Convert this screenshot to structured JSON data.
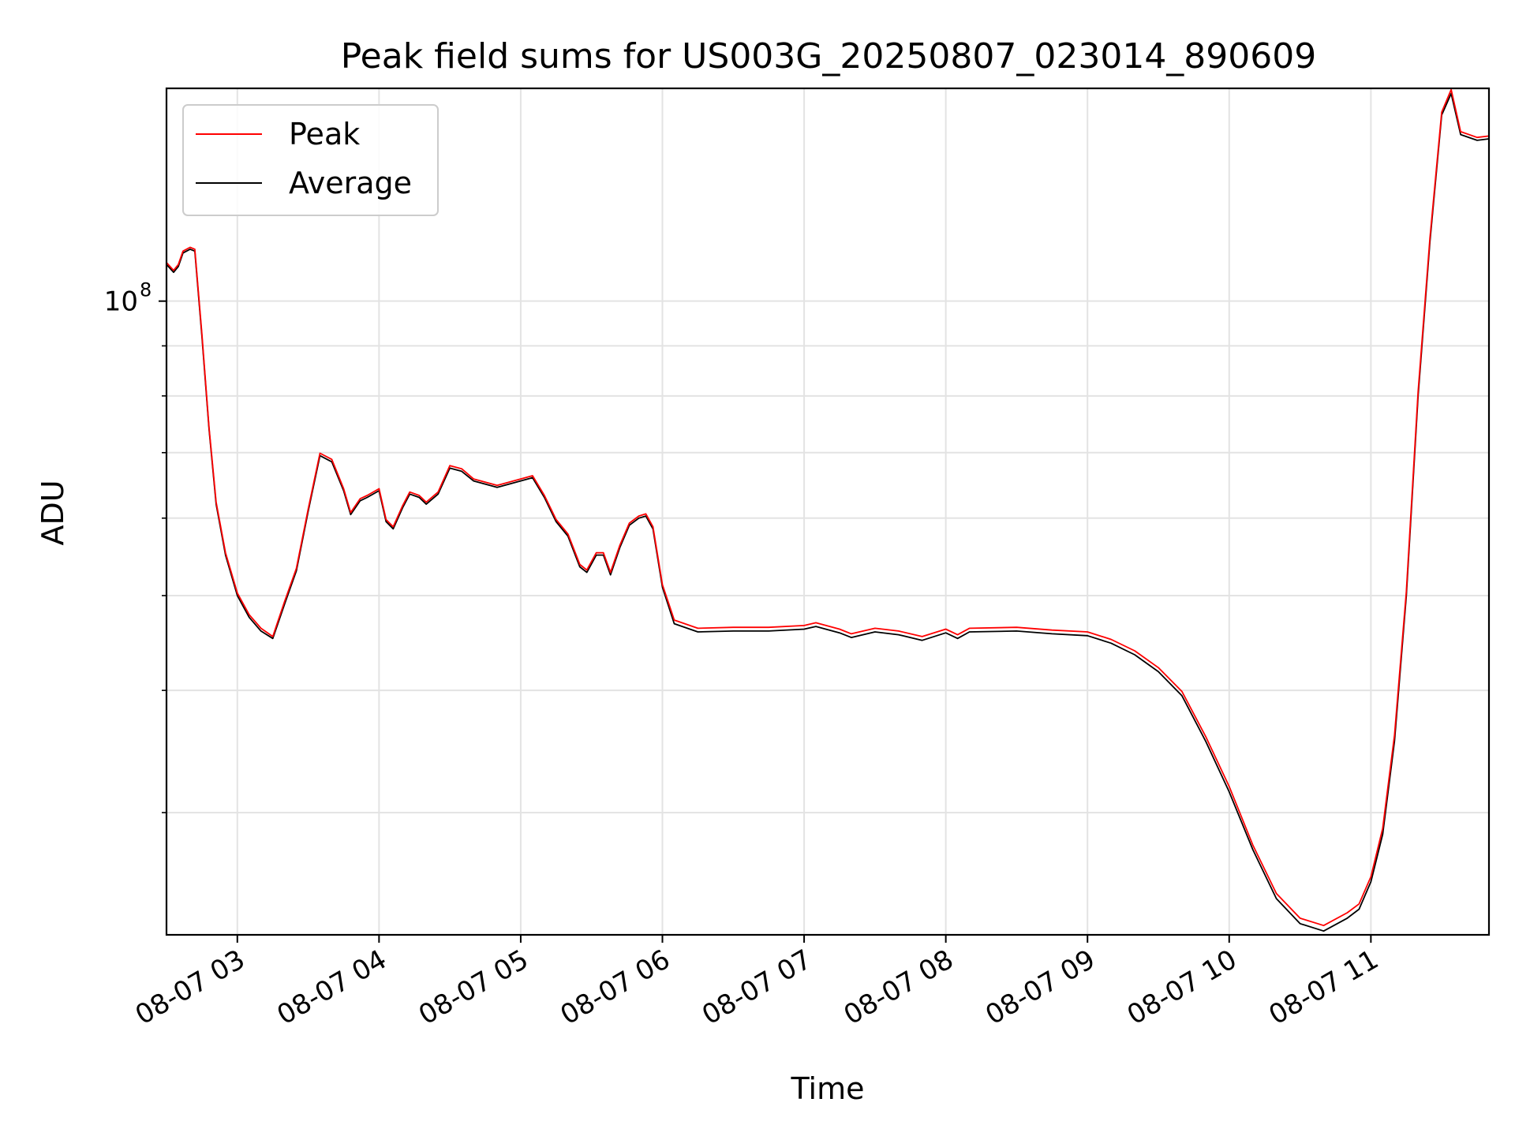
{
  "chart_data": {
    "type": "line",
    "title": "Peak field sums for US003G_20250807_023014_890609",
    "xlabel": "Time",
    "ylabel": "ADU",
    "yscale": "log",
    "grid": true,
    "legend": {
      "position": "top-left",
      "entries": [
        "Peak",
        "Average"
      ]
    },
    "x_range": [
      "2025-08-07 02:30",
      "2025-08-07 11:50"
    ],
    "ylim": [
      22500000,
      165000000
    ],
    "x_ticks": [
      {
        "t": "2025-08-07 03:00",
        "label": "08-07 03"
      },
      {
        "t": "2025-08-07 04:00",
        "label": "08-07 04"
      },
      {
        "t": "2025-08-07 05:00",
        "label": "08-07 05"
      },
      {
        "t": "2025-08-07 06:00",
        "label": "08-07 06"
      },
      {
        "t": "2025-08-07 07:00",
        "label": "08-07 07"
      },
      {
        "t": "2025-08-07 08:00",
        "label": "08-07 08"
      },
      {
        "t": "2025-08-07 09:00",
        "label": "08-07 09"
      },
      {
        "t": "2025-08-07 10:00",
        "label": "08-07 10"
      },
      {
        "t": "2025-08-07 11:00",
        "label": "08-07 11"
      }
    ],
    "y_major_ticks": [
      {
        "value": 100000000,
        "label": "10",
        "exponent": "8"
      }
    ],
    "y_minor_ticks": [
      30000000,
      40000000,
      50000000,
      60000000,
      70000000,
      80000000,
      90000000
    ],
    "series": [
      {
        "name": "Average",
        "color": "#000000",
        "points": [
          [
            "2025-08-07 02:30",
            109000000
          ],
          [
            "2025-08-07 02:33",
            107000000
          ],
          [
            "2025-08-07 02:35",
            108500000
          ],
          [
            "2025-08-07 02:37",
            112000000
          ],
          [
            "2025-08-07 02:40",
            113000000
          ],
          [
            "2025-08-07 02:42",
            112500000
          ],
          [
            "2025-08-07 02:45",
            92000000
          ],
          [
            "2025-08-07 02:48",
            74000000
          ],
          [
            "2025-08-07 02:51",
            62000000
          ],
          [
            "2025-08-07 02:55",
            55000000
          ],
          [
            "2025-08-07 03:00",
            50000000
          ],
          [
            "2025-08-07 03:05",
            47500000
          ],
          [
            "2025-08-07 03:10",
            46000000
          ],
          [
            "2025-08-07 03:15",
            45200000
          ],
          [
            "2025-08-07 03:20",
            49000000
          ],
          [
            "2025-08-07 03:25",
            53000000
          ],
          [
            "2025-08-07 03:30",
            61000000
          ],
          [
            "2025-08-07 03:35",
            69500000
          ],
          [
            "2025-08-07 03:40",
            68500000
          ],
          [
            "2025-08-07 03:45",
            64000000
          ],
          [
            "2025-08-07 03:48",
            60500000
          ],
          [
            "2025-08-07 03:52",
            62500000
          ],
          [
            "2025-08-07 03:55",
            63000000
          ],
          [
            "2025-08-07 04:00",
            64000000
          ],
          [
            "2025-08-07 04:03",
            59500000
          ],
          [
            "2025-08-07 04:06",
            58500000
          ],
          [
            "2025-08-07 04:10",
            61500000
          ],
          [
            "2025-08-07 04:13",
            63500000
          ],
          [
            "2025-08-07 04:17",
            63000000
          ],
          [
            "2025-08-07 04:20",
            62000000
          ],
          [
            "2025-08-07 04:25",
            63500000
          ],
          [
            "2025-08-07 04:30",
            67500000
          ],
          [
            "2025-08-07 04:35",
            67000000
          ],
          [
            "2025-08-07 04:40",
            65500000
          ],
          [
            "2025-08-07 04:50",
            64500000
          ],
          [
            "2025-08-07 05:00",
            65500000
          ],
          [
            "2025-08-07 05:05",
            66000000
          ],
          [
            "2025-08-07 05:10",
            63000000
          ],
          [
            "2025-08-07 05:15",
            59500000
          ],
          [
            "2025-08-07 05:20",
            57500000
          ],
          [
            "2025-08-07 05:25",
            53500000
          ],
          [
            "2025-08-07 05:28",
            52800000
          ],
          [
            "2025-08-07 05:32",
            55000000
          ],
          [
            "2025-08-07 05:35",
            55000000
          ],
          [
            "2025-08-07 05:38",
            52500000
          ],
          [
            "2025-08-07 05:42",
            56000000
          ],
          [
            "2025-08-07 05:46",
            59000000
          ],
          [
            "2025-08-07 05:50",
            60000000
          ],
          [
            "2025-08-07 05:53",
            60300000
          ],
          [
            "2025-08-07 05:56",
            58500000
          ],
          [
            "2025-08-07 06:00",
            51000000
          ],
          [
            "2025-08-07 06:05",
            46800000
          ],
          [
            "2025-08-07 06:15",
            45900000
          ],
          [
            "2025-08-07 06:30",
            46000000
          ],
          [
            "2025-08-07 06:45",
            46000000
          ],
          [
            "2025-08-07 07:00",
            46200000
          ],
          [
            "2025-08-07 07:05",
            46500000
          ],
          [
            "2025-08-07 07:15",
            45800000
          ],
          [
            "2025-08-07 07:20",
            45300000
          ],
          [
            "2025-08-07 07:30",
            45900000
          ],
          [
            "2025-08-07 07:40",
            45600000
          ],
          [
            "2025-08-07 07:50",
            45000000
          ],
          [
            "2025-08-07 08:00",
            45800000
          ],
          [
            "2025-08-07 08:05",
            45200000
          ],
          [
            "2025-08-07 08:10",
            45900000
          ],
          [
            "2025-08-07 08:30",
            46000000
          ],
          [
            "2025-08-07 08:45",
            45700000
          ],
          [
            "2025-08-07 09:00",
            45500000
          ],
          [
            "2025-08-07 09:10",
            44700000
          ],
          [
            "2025-08-07 09:20",
            43500000
          ],
          [
            "2025-08-07 09:30",
            41800000
          ],
          [
            "2025-08-07 09:40",
            39500000
          ],
          [
            "2025-08-07 09:50",
            35500000
          ],
          [
            "2025-08-07 10:00",
            31500000
          ],
          [
            "2025-08-07 10:10",
            27500000
          ],
          [
            "2025-08-07 10:20",
            24500000
          ],
          [
            "2025-08-07 10:30",
            23100000
          ],
          [
            "2025-08-07 10:40",
            22700000
          ],
          [
            "2025-08-07 10:50",
            23400000
          ],
          [
            "2025-08-07 10:55",
            23900000
          ],
          [
            "2025-08-07 11:00",
            25500000
          ],
          [
            "2025-08-07 11:05",
            28500000
          ],
          [
            "2025-08-07 11:10",
            35500000
          ],
          [
            "2025-08-07 11:15",
            50000000
          ],
          [
            "2025-08-07 11:20",
            80000000
          ],
          [
            "2025-08-07 11:25",
            115000000
          ],
          [
            "2025-08-07 11:30",
            155000000
          ],
          [
            "2025-08-07 11:34",
            163000000
          ],
          [
            "2025-08-07 11:38",
            148000000
          ],
          [
            "2025-08-07 11:45",
            146000000
          ],
          [
            "2025-08-07 11:50",
            146500000
          ]
        ]
      },
      {
        "name": "Peak",
        "color": "#ff0000",
        "points": [
          [
            "2025-08-07 02:30",
            109500000
          ],
          [
            "2025-08-07 02:33",
            107500000
          ],
          [
            "2025-08-07 02:35",
            109000000
          ],
          [
            "2025-08-07 02:37",
            112500000
          ],
          [
            "2025-08-07 02:40",
            113500000
          ],
          [
            "2025-08-07 02:42",
            113000000
          ],
          [
            "2025-08-07 02:45",
            92500000
          ],
          [
            "2025-08-07 02:48",
            74300000
          ],
          [
            "2025-08-07 02:51",
            62300000
          ],
          [
            "2025-08-07 02:55",
            55300000
          ],
          [
            "2025-08-07 03:00",
            50300000
          ],
          [
            "2025-08-07 03:05",
            47800000
          ],
          [
            "2025-08-07 03:10",
            46300000
          ],
          [
            "2025-08-07 03:15",
            45400000
          ],
          [
            "2025-08-07 03:20",
            49300000
          ],
          [
            "2025-08-07 03:25",
            53300000
          ],
          [
            "2025-08-07 03:30",
            61300000
          ],
          [
            "2025-08-07 03:35",
            69900000
          ],
          [
            "2025-08-07 03:40",
            68900000
          ],
          [
            "2025-08-07 03:45",
            64300000
          ],
          [
            "2025-08-07 03:48",
            60800000
          ],
          [
            "2025-08-07 03:52",
            62800000
          ],
          [
            "2025-08-07 03:55",
            63300000
          ],
          [
            "2025-08-07 04:00",
            64300000
          ],
          [
            "2025-08-07 04:03",
            59800000
          ],
          [
            "2025-08-07 04:06",
            58800000
          ],
          [
            "2025-08-07 04:10",
            61800000
          ],
          [
            "2025-08-07 04:13",
            63800000
          ],
          [
            "2025-08-07 04:17",
            63300000
          ],
          [
            "2025-08-07 04:20",
            62300000
          ],
          [
            "2025-08-07 04:25",
            63800000
          ],
          [
            "2025-08-07 04:30",
            67900000
          ],
          [
            "2025-08-07 04:35",
            67400000
          ],
          [
            "2025-08-07 04:40",
            65800000
          ],
          [
            "2025-08-07 04:50",
            64800000
          ],
          [
            "2025-08-07 05:00",
            65800000
          ],
          [
            "2025-08-07 05:05",
            66300000
          ],
          [
            "2025-08-07 05:10",
            63300000
          ],
          [
            "2025-08-07 05:15",
            59800000
          ],
          [
            "2025-08-07 05:20",
            57800000
          ],
          [
            "2025-08-07 05:25",
            53800000
          ],
          [
            "2025-08-07 05:28",
            53100000
          ],
          [
            "2025-08-07 05:32",
            55300000
          ],
          [
            "2025-08-07 05:35",
            55300000
          ],
          [
            "2025-08-07 05:38",
            52800000
          ],
          [
            "2025-08-07 05:42",
            56300000
          ],
          [
            "2025-08-07 05:46",
            59300000
          ],
          [
            "2025-08-07 05:50",
            60300000
          ],
          [
            "2025-08-07 05:53",
            60600000
          ],
          [
            "2025-08-07 05:56",
            58800000
          ],
          [
            "2025-08-07 06:00",
            51300000
          ],
          [
            "2025-08-07 06:05",
            47200000
          ],
          [
            "2025-08-07 06:15",
            46300000
          ],
          [
            "2025-08-07 06:30",
            46400000
          ],
          [
            "2025-08-07 06:45",
            46400000
          ],
          [
            "2025-08-07 07:00",
            46600000
          ],
          [
            "2025-08-07 07:05",
            46900000
          ],
          [
            "2025-08-07 07:15",
            46200000
          ],
          [
            "2025-08-07 07:20",
            45700000
          ],
          [
            "2025-08-07 07:30",
            46300000
          ],
          [
            "2025-08-07 07:40",
            46000000
          ],
          [
            "2025-08-07 07:50",
            45400000
          ],
          [
            "2025-08-07 08:00",
            46200000
          ],
          [
            "2025-08-07 08:05",
            45600000
          ],
          [
            "2025-08-07 08:10",
            46300000
          ],
          [
            "2025-08-07 08:30",
            46400000
          ],
          [
            "2025-08-07 08:45",
            46100000
          ],
          [
            "2025-08-07 09:00",
            45900000
          ],
          [
            "2025-08-07 09:10",
            45100000
          ],
          [
            "2025-08-07 09:20",
            43900000
          ],
          [
            "2025-08-07 09:30",
            42200000
          ],
          [
            "2025-08-07 09:40",
            39900000
          ],
          [
            "2025-08-07 09:50",
            35900000
          ],
          [
            "2025-08-07 10:00",
            31900000
          ],
          [
            "2025-08-07 10:10",
            27800000
          ],
          [
            "2025-08-07 10:20",
            24800000
          ],
          [
            "2025-08-07 10:30",
            23400000
          ],
          [
            "2025-08-07 10:40",
            23000000
          ],
          [
            "2025-08-07 10:50",
            23700000
          ],
          [
            "2025-08-07 10:55",
            24200000
          ],
          [
            "2025-08-07 11:00",
            25800000
          ],
          [
            "2025-08-07 11:05",
            28900000
          ],
          [
            "2025-08-07 11:10",
            36000000
          ],
          [
            "2025-08-07 11:15",
            50500000
          ],
          [
            "2025-08-07 11:20",
            80800000
          ],
          [
            "2025-08-07 11:25",
            116000000
          ],
          [
            "2025-08-07 11:30",
            156000000
          ],
          [
            "2025-08-07 11:34",
            164500000
          ],
          [
            "2025-08-07 11:38",
            149000000
          ],
          [
            "2025-08-07 11:45",
            147000000
          ],
          [
            "2025-08-07 11:50",
            147500000
          ]
        ]
      }
    ]
  }
}
